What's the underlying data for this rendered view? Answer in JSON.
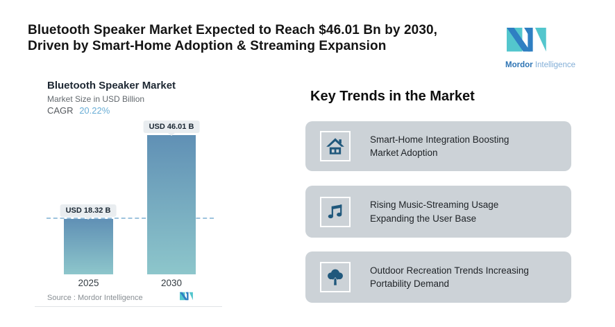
{
  "header": {
    "headline_line1": "Bluetooth Speaker Market Expected to Reach $46.01 Bn by 2030,",
    "headline_line2": "Driven by Smart-Home Adoption & Streaming Expansion",
    "logo": {
      "brand_bold": "Mordor",
      "brand_light": "Intelligence"
    }
  },
  "chart_data": {
    "type": "bar",
    "title": "Bluetooth Speaker Market",
    "subtitle": "Market Size in USD Billion",
    "cagr_label": "CAGR",
    "cagr_value": "20.22%",
    "categories": [
      "2025",
      "2030"
    ],
    "values": [
      18.32,
      46.01
    ],
    "bar_labels": [
      "USD 18.32 B",
      "USD 46.01 B"
    ],
    "xlabel": "",
    "ylabel": "Market Size in USD Billion",
    "ylim": [
      0,
      50
    ],
    "grid": "off",
    "dashed_reference_value": 18.32,
    "source": "Source :  Mordor Intelligence"
  },
  "trends": {
    "heading": "Key Trends in the Market",
    "cards": [
      {
        "icon": "smart-home-icon",
        "line1": "Smart-Home Integration Boosting",
        "line2": "Market Adoption"
      },
      {
        "icon": "music-note-icon",
        "line1": "Rising Music-Streaming Usage",
        "line2": "Expanding the User Base"
      },
      {
        "icon": "tree-icon",
        "line1": "Outdoor Recreation Trends Increasing",
        "line2": "Portability Demand"
      }
    ]
  },
  "colors": {
    "bar_gradient_top": "#6090b5",
    "bar_gradient_bottom": "#8dc6cb",
    "dashed_line": "#9dc3de",
    "accent_blue": "#6aaed6",
    "card_bg": "#ccd2d7",
    "icon_teal": "#20587c",
    "logo_teal": "#53c6cd",
    "logo_blue": "#2f7fc2",
    "label_box_bg": "#e9edf0"
  }
}
